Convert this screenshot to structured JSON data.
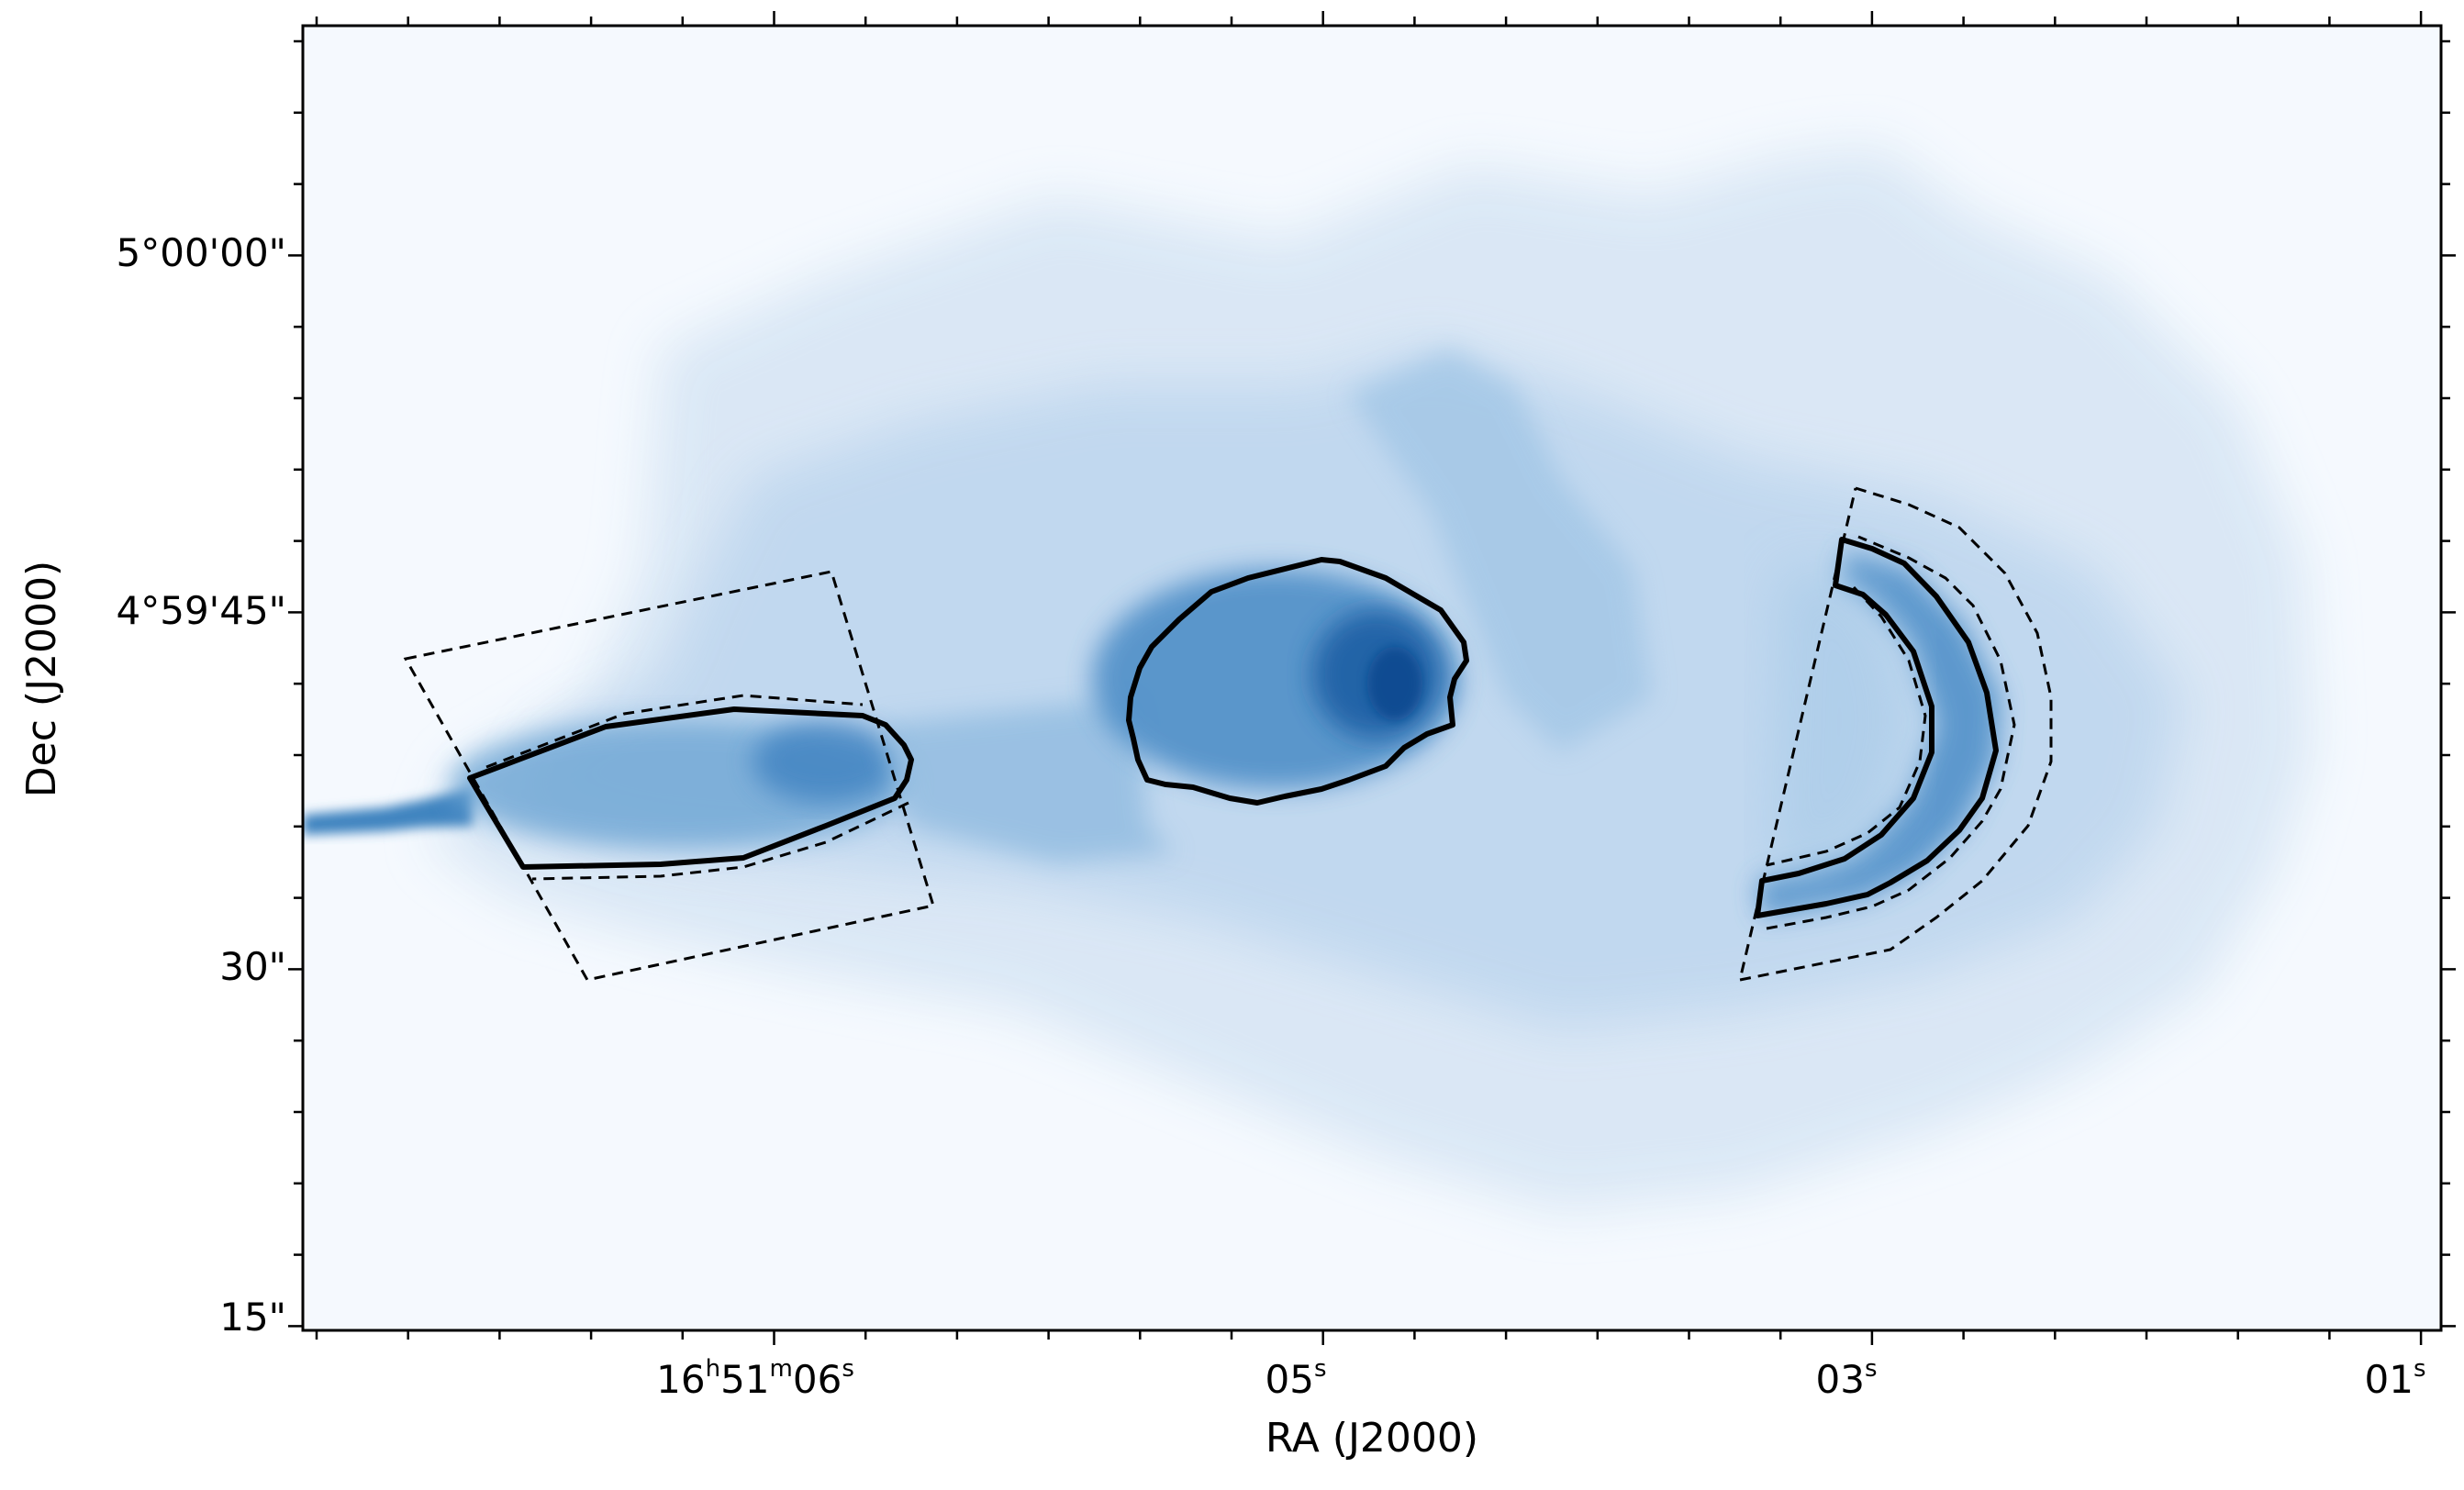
{
  "figure": {
    "xlabel": "RA (J2000)",
    "ylabel": "Dec (J2000)",
    "colormap": "Blues",
    "background_color": "#f5f9fe",
    "contour_color": "#000000",
    "x_ticks": [
      {
        "label": "16h51m06s",
        "main": "16",
        "h": "h",
        "m_num": "51",
        "m": "m",
        "s_num": "06",
        "s": "s"
      },
      {
        "label": "05s",
        "main": "05",
        "s": "s"
      },
      {
        "label": "03s",
        "main": "03",
        "s": "s"
      },
      {
        "label": "01s",
        "main": "01",
        "s": "s"
      }
    ],
    "y_ticks": [
      {
        "label": "5°00'00\""
      },
      {
        "label": "4°59'45\""
      },
      {
        "label": "30\""
      },
      {
        "label": "15\""
      }
    ]
  }
}
